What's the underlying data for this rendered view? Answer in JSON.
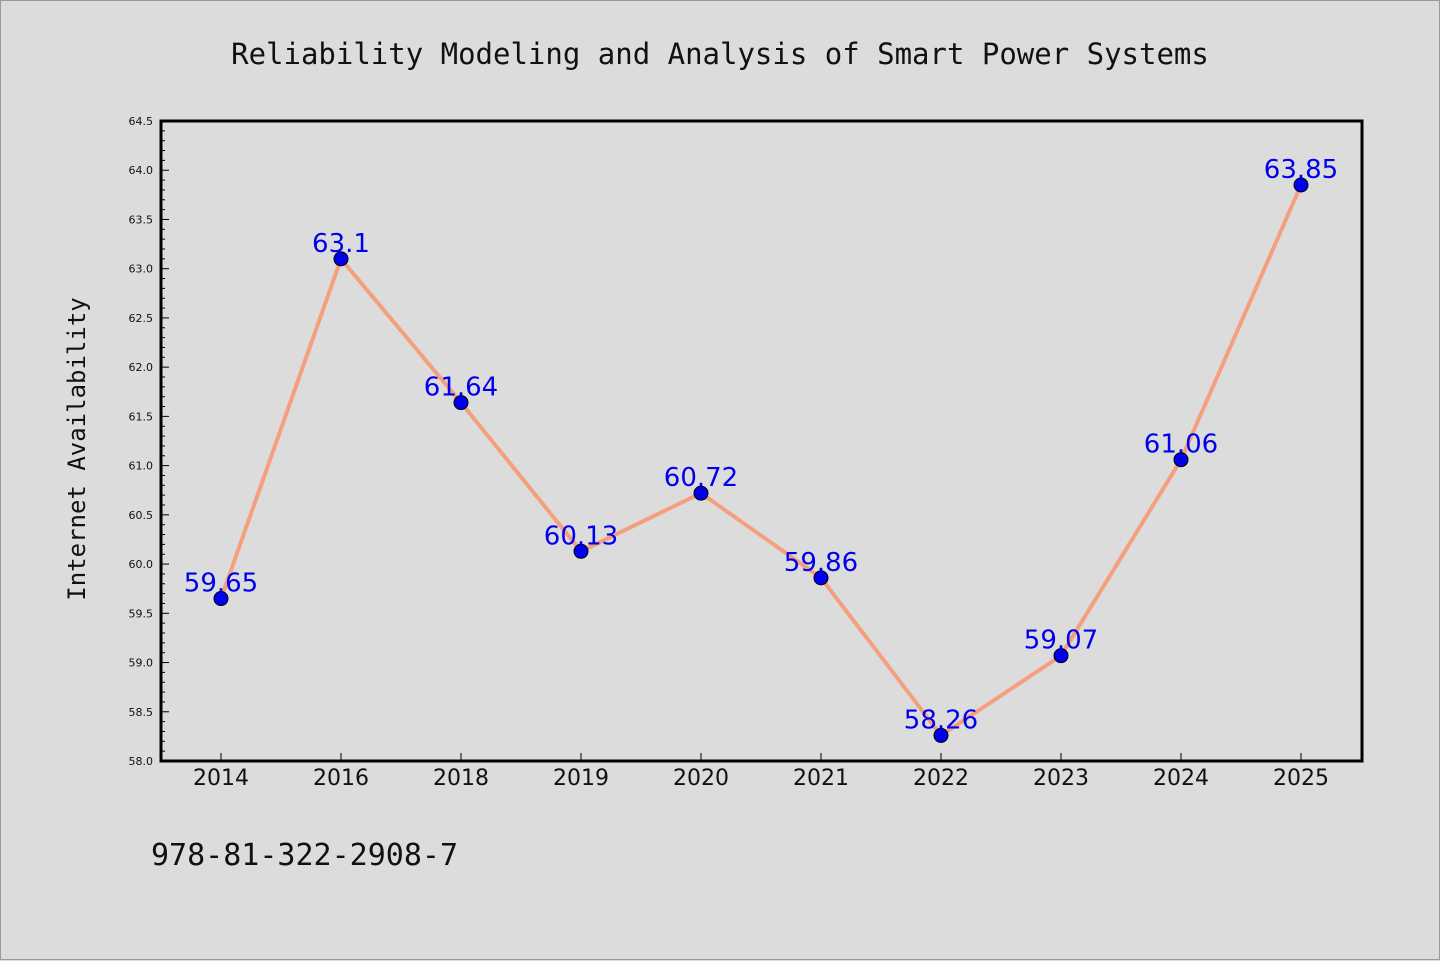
{
  "chart_data": {
    "type": "line",
    "title": "Reliability Modeling and Analysis of Smart Power Systems",
    "xlabel": "",
    "ylabel": "Internet Availability",
    "categories": [
      "2014",
      "2016",
      "2018",
      "2019",
      "2020",
      "2021",
      "2022",
      "2023",
      "2024",
      "2025"
    ],
    "series": [
      {
        "values": [
          59.65,
          63.1,
          61.64,
          60.13,
          60.72,
          59.86,
          58.26,
          59.07,
          61.06,
          63.85
        ],
        "labels": [
          "59.65",
          "63.1",
          "61.64",
          "60.13",
          "60.72",
          "59.86",
          "58.26",
          "59.07",
          "61.06",
          "63.85"
        ],
        "line_color": "#f4a07e",
        "marker_color": "#0000ee"
      }
    ],
    "ylim": [
      58.0,
      64.5
    ],
    "yticks": [
      "58.0",
      "58.5",
      "59.0",
      "59.5",
      "60.0",
      "60.5",
      "61.0",
      "61.5",
      "62.0",
      "62.5",
      "63.0",
      "63.5",
      "64.0",
      "64.5"
    ],
    "grid": false,
    "legend": "none"
  },
  "footer_text": "978-81-322-2908-7"
}
